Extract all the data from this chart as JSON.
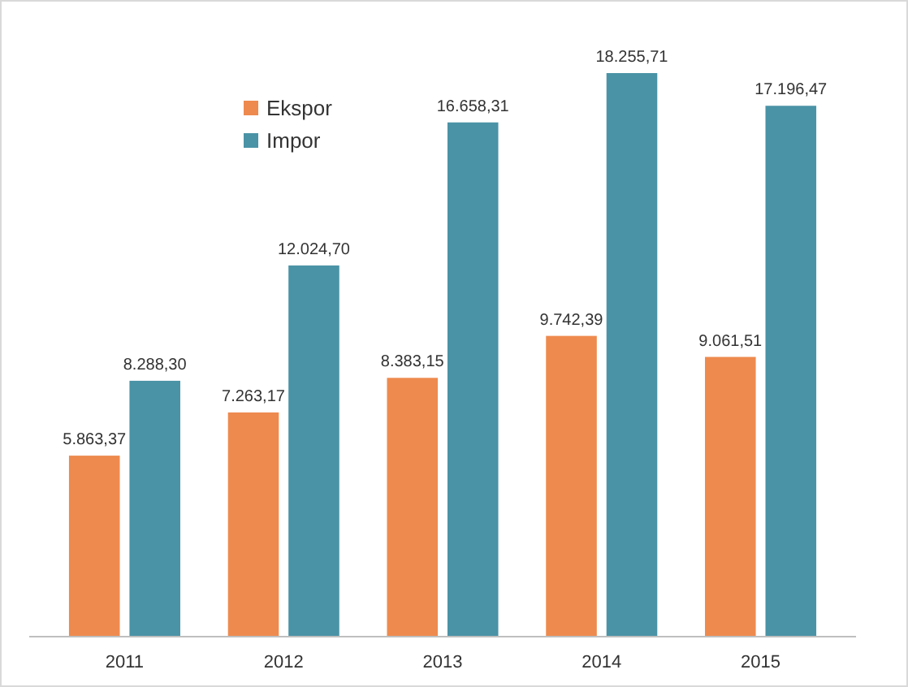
{
  "chart_data": {
    "type": "bar",
    "categories": [
      "2011",
      "2012",
      "2013",
      "2014",
      "2015"
    ],
    "series": [
      {
        "name": "Ekspor",
        "color": "#ee8a4e",
        "values": [
          5863.37,
          7263.17,
          8383.15,
          9742.39,
          9061.51
        ],
        "value_labels": [
          "5.863,37",
          "7.263,17",
          "8.383,15",
          "9.742,39",
          "9.061,51"
        ]
      },
      {
        "name": "Impor",
        "color": "#4a93a6",
        "values": [
          8288.3,
          12024.7,
          16658.31,
          18255.71,
          17196.47
        ],
        "value_labels": [
          "8.288,30",
          "12.024,70",
          "16.658,31",
          "18.255,71",
          "17.196,47"
        ]
      }
    ],
    "legend": "top left"
  }
}
